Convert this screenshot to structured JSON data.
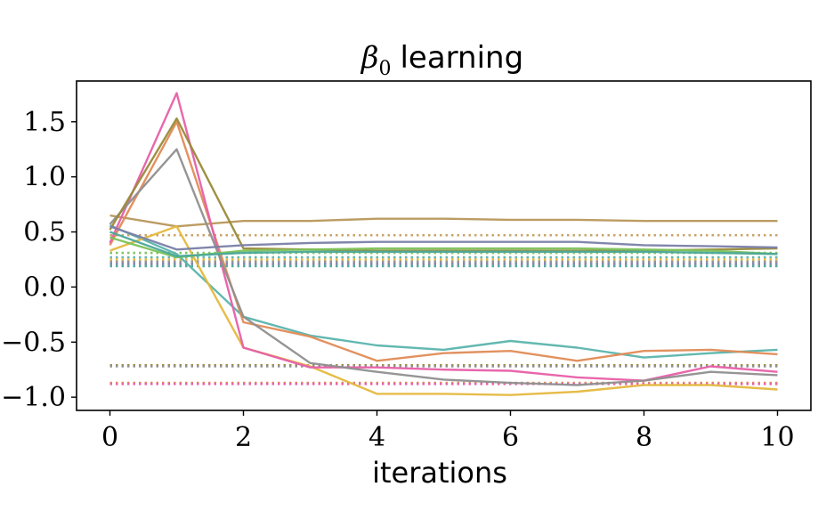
{
  "chart_data": {
    "type": "line",
    "title": "β₀ learning",
    "title_symbol": "β",
    "title_subscript": "0",
    "title_text": "learning",
    "xlabel": "iterations",
    "ylabel": "",
    "xlim": [
      -0.5,
      10.5
    ],
    "ylim": [
      -1.12,
      1.87
    ],
    "xticks": [
      0,
      2,
      4,
      6,
      8,
      10
    ],
    "xtick_labels": [
      "0",
      "2",
      "4",
      "6",
      "8",
      "10"
    ],
    "yticks": [
      -1.0,
      -0.5,
      0.0,
      0.5,
      1.0,
      1.5
    ],
    "ytick_labels": [
      "−1.0",
      "−0.5",
      "0.0",
      "0.5",
      "1.0",
      "1.5"
    ],
    "grid": false,
    "legend": "none",
    "x": [
      0,
      1,
      2,
      3,
      4,
      5,
      6,
      7,
      8,
      9,
      10
    ],
    "series": [
      {
        "color": "#b8975a",
        "values": [
          0.65,
          0.55,
          0.6,
          0.6,
          0.62,
          0.62,
          0.61,
          0.61,
          0.6,
          0.6,
          0.6
        ]
      },
      {
        "color": "#5ab4ac",
        "values": [
          0.56,
          0.3,
          -0.27,
          -0.44,
          -0.53,
          -0.57,
          -0.49,
          -0.55,
          -0.64,
          -0.6,
          -0.57
        ]
      },
      {
        "color": "#e08b56",
        "values": [
          0.38,
          1.5,
          -0.32,
          -0.45,
          -0.67,
          -0.6,
          -0.58,
          -0.67,
          -0.58,
          -0.57,
          -0.61
        ]
      },
      {
        "color": "#e5b83f",
        "values": [
          0.33,
          0.55,
          -0.55,
          -0.72,
          -0.97,
          -0.97,
          -0.98,
          -0.95,
          -0.89,
          -0.89,
          -0.93
        ]
      },
      {
        "color": "#e75fa8",
        "values": [
          0.4,
          1.76,
          -0.55,
          -0.73,
          -0.73,
          -0.75,
          -0.76,
          -0.82,
          -0.85,
          -0.72,
          -0.77
        ]
      },
      {
        "color": "#8f8f8f",
        "values": [
          0.57,
          1.25,
          -0.27,
          -0.69,
          -0.77,
          -0.84,
          -0.87,
          -0.89,
          -0.85,
          -0.77,
          -0.8
        ]
      },
      {
        "color": "#9a8a3a",
        "values": [
          0.52,
          1.53,
          0.35,
          0.34,
          0.33,
          0.33,
          0.33,
          0.33,
          0.33,
          0.34,
          0.35
        ]
      },
      {
        "color": "#7a7fa8",
        "values": [
          0.55,
          0.34,
          0.38,
          0.4,
          0.41,
          0.41,
          0.41,
          0.41,
          0.38,
          0.37,
          0.36
        ]
      },
      {
        "color": "#7bc25a",
        "values": [
          0.45,
          0.27,
          0.33,
          0.34,
          0.35,
          0.35,
          0.35,
          0.35,
          0.34,
          0.33,
          0.3
        ]
      },
      {
        "color": "#4aa89a",
        "values": [
          0.5,
          0.28,
          0.31,
          0.32,
          0.32,
          0.32,
          0.32,
          0.32,
          0.32,
          0.31,
          0.3
        ]
      }
    ],
    "reference_lines": [
      {
        "color": "#c8a060",
        "y": 0.47
      },
      {
        "color": "#7bc25a",
        "y": 0.31
      },
      {
        "color": "#5ab4ac",
        "y": 0.27
      },
      {
        "color": "#e5b83f",
        "y": 0.25
      },
      {
        "color": "#8f8f8f",
        "y": 0.23
      },
      {
        "color": "#7a7fa8",
        "y": 0.21
      },
      {
        "color": "#4aa89a",
        "y": 0.19
      },
      {
        "color": "#9a8a3a",
        "y": -0.71
      },
      {
        "color": "#8f8f8f",
        "y": -0.72
      },
      {
        "color": "#e08b56",
        "y": -0.87
      },
      {
        "color": "#e75fa8",
        "y": -0.88
      }
    ]
  }
}
